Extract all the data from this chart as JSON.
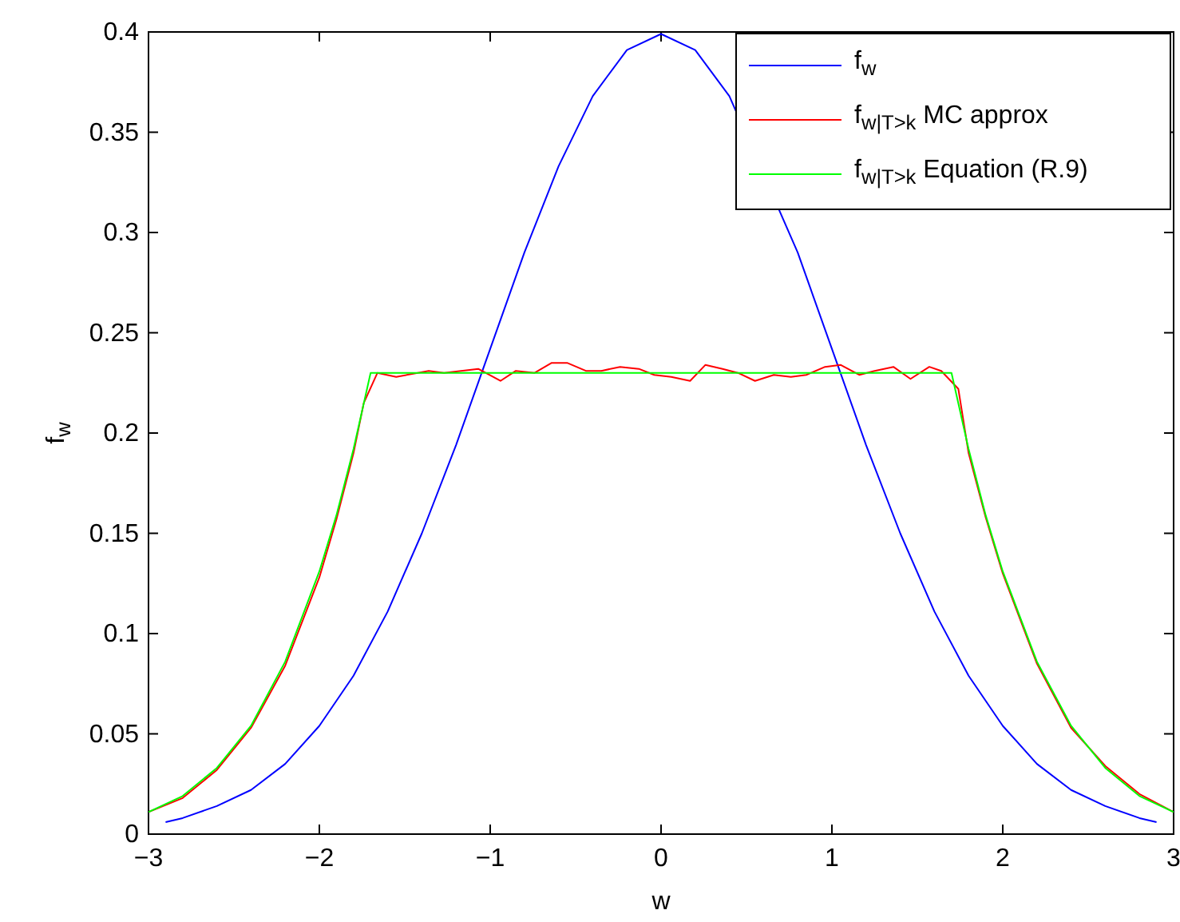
{
  "chart_data": {
    "type": "line",
    "xlabel": "w",
    "ylabel": "f$_{w}$",
    "xlim": [
      -3,
      3
    ],
    "ylim": [
      0,
      0.4
    ],
    "xticks": [
      -3,
      -2,
      -1,
      0,
      1,
      2,
      3
    ],
    "yticks": [
      0,
      0.05,
      0.1,
      0.15,
      0.2,
      0.25,
      0.3,
      0.35,
      0.4
    ],
    "grid": false,
    "legend": "top right",
    "line_style": "solid",
    "series": [
      {
        "name": "f$_{w}$",
        "color": "#0000ff",
        "x": [
          -2.9,
          -2.8,
          -2.6,
          -2.4,
          -2.2,
          -2,
          -1.8,
          -1.6,
          -1.4,
          -1.2,
          -1,
          -0.8,
          -0.6,
          -0.4,
          -0.2,
          0,
          0.2,
          0.4,
          0.8,
          1,
          1.2,
          1.4,
          1.6,
          1.8,
          2,
          2.2,
          2.4,
          2.6,
          2.8,
          2.9
        ],
        "values": [
          0.006,
          0.008,
          0.014,
          0.022,
          0.035,
          0.054,
          0.079,
          0.111,
          0.15,
          0.194,
          0.242,
          0.29,
          0.333,
          0.368,
          0.391,
          0.399,
          0.391,
          0.368,
          0.29,
          0.242,
          0.194,
          0.15,
          0.111,
          0.079,
          0.054,
          0.035,
          0.022,
          0.014,
          0.008,
          0.006
        ]
      },
      {
        "name": "f$_{w|T>k}$ MC approx",
        "color": "#ff0000",
        "x": [
          -3,
          -2.8,
          -2.6,
          -2.4,
          -2.2,
          -2,
          -1.9,
          -1.8,
          -1.74,
          -1.66,
          -1.55,
          -1.36,
          -1.27,
          -1.07,
          -0.94,
          -0.85,
          -0.74,
          -0.64,
          -0.55,
          -0.44,
          -0.35,
          -0.24,
          -0.13,
          -0.04,
          0.06,
          0.17,
          0.26,
          0.36,
          0.45,
          0.55,
          0.66,
          0.76,
          0.85,
          0.96,
          1.05,
          1.16,
          1.25,
          1.36,
          1.46,
          1.57,
          1.64,
          1.74,
          1.8,
          1.9,
          2,
          2.2,
          2.4,
          2.6,
          2.8,
          3
        ],
        "values": [
          0.011,
          0.018,
          0.032,
          0.053,
          0.084,
          0.128,
          0.157,
          0.19,
          0.215,
          0.23,
          0.228,
          0.231,
          0.23,
          0.232,
          0.226,
          0.231,
          0.23,
          0.235,
          0.235,
          0.231,
          0.231,
          0.233,
          0.232,
          0.229,
          0.228,
          0.226,
          0.234,
          0.232,
          0.23,
          0.226,
          0.229,
          0.228,
          0.229,
          0.233,
          0.234,
          0.229,
          0.231,
          0.233,
          0.227,
          0.233,
          0.231,
          0.222,
          0.19,
          0.158,
          0.13,
          0.085,
          0.053,
          0.034,
          0.02,
          0.011
        ]
      },
      {
        "name": "f$_{w|T>k}$ Equation (R.9)",
        "color": "#00ff00",
        "x": [
          -3,
          -2.8,
          -2.6,
          -2.4,
          -2.2,
          -2,
          -1.9,
          -1.8,
          -1.7,
          1.7,
          1.8,
          1.9,
          2,
          2.2,
          2.4,
          2.6,
          2.8,
          3
        ],
        "values": [
          0.011,
          0.019,
          0.033,
          0.054,
          0.086,
          0.131,
          0.159,
          0.192,
          0.23,
          0.23,
          0.192,
          0.159,
          0.131,
          0.086,
          0.054,
          0.033,
          0.019,
          0.011
        ]
      }
    ]
  }
}
